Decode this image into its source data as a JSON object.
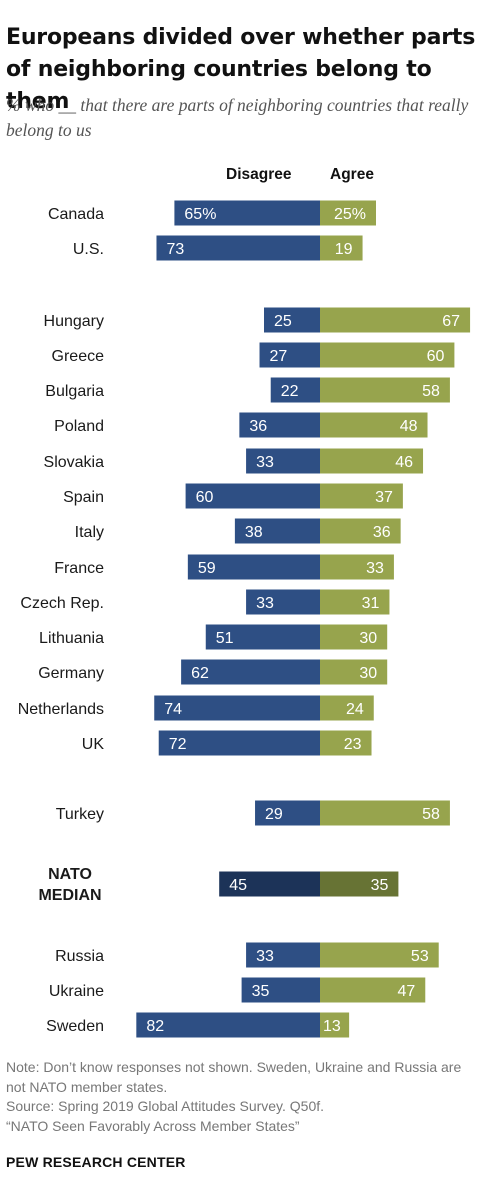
{
  "title": "Europeans divided over whether parts of neighboring countries belong to them",
  "subtitle": "% who __ that there are parts of neighboring countries that really belong to us",
  "colors": {
    "disagree": "#2e4f84",
    "agree": "#97a44d",
    "disagree_median": "#1c3358",
    "agree_median": "#677334"
  },
  "chart_data": {
    "type": "bar",
    "orientation": "horizontal-diverging",
    "series": [
      {
        "name": "Disagree",
        "values": [
          65,
          73,
          25,
          27,
          22,
          36,
          33,
          60,
          38,
          59,
          33,
          51,
          62,
          74,
          72,
          29,
          45,
          33,
          35,
          82
        ]
      },
      {
        "name": "Agree",
        "values": [
          25,
          19,
          67,
          60,
          58,
          48,
          46,
          37,
          36,
          33,
          31,
          30,
          30,
          24,
          23,
          58,
          35,
          53,
          47,
          13
        ]
      }
    ],
    "categories": [
      "Canada",
      "U.S.",
      "Hungary",
      "Greece",
      "Bulgaria",
      "Poland",
      "Slovakia",
      "Spain",
      "Italy",
      "France",
      "Czech Rep.",
      "Lithuania",
      "Germany",
      "Netherlands",
      "UK",
      "Turkey",
      "NATO MEDIAN",
      "Russia",
      "Ukraine",
      "Sweden"
    ],
    "rows": [
      {
        "label": "Canada",
        "disagree": 65,
        "agree": 25,
        "disagree_text": "65%",
        "agree_text": "25%"
      },
      {
        "label": "U.S.",
        "disagree": 73,
        "agree": 19,
        "disagree_text": "73",
        "agree_text": "19"
      },
      {
        "label": "Hungary",
        "disagree": 25,
        "agree": 67,
        "disagree_text": "25",
        "agree_text": "67"
      },
      {
        "label": "Greece",
        "disagree": 27,
        "agree": 60,
        "disagree_text": "27",
        "agree_text": "60"
      },
      {
        "label": "Bulgaria",
        "disagree": 22,
        "agree": 58,
        "disagree_text": "22",
        "agree_text": "58"
      },
      {
        "label": "Poland",
        "disagree": 36,
        "agree": 48,
        "disagree_text": "36",
        "agree_text": "48"
      },
      {
        "label": "Slovakia",
        "disagree": 33,
        "agree": 46,
        "disagree_text": "33",
        "agree_text": "46"
      },
      {
        "label": "Spain",
        "disagree": 60,
        "agree": 37,
        "disagree_text": "60",
        "agree_text": "37"
      },
      {
        "label": "Italy",
        "disagree": 38,
        "agree": 36,
        "disagree_text": "38",
        "agree_text": "36"
      },
      {
        "label": "France",
        "disagree": 59,
        "agree": 33,
        "disagree_text": "59",
        "agree_text": "33"
      },
      {
        "label": "Czech Rep.",
        "disagree": 33,
        "agree": 31,
        "disagree_text": "33",
        "agree_text": "31"
      },
      {
        "label": "Lithuania",
        "disagree": 51,
        "agree": 30,
        "disagree_text": "51",
        "agree_text": "30"
      },
      {
        "label": "Germany",
        "disagree": 62,
        "agree": 30,
        "disagree_text": "62",
        "agree_text": "30"
      },
      {
        "label": "Netherlands",
        "disagree": 74,
        "agree": 24,
        "disagree_text": "74",
        "agree_text": "24"
      },
      {
        "label": "UK",
        "disagree": 72,
        "agree": 23,
        "disagree_text": "72",
        "agree_text": "23"
      },
      {
        "label": "Turkey",
        "disagree": 29,
        "agree": 58,
        "disagree_text": "29",
        "agree_text": "58"
      },
      {
        "label": "NATO MEDIAN",
        "label_lines": [
          "NATO",
          "MEDIAN"
        ],
        "median": true,
        "disagree": 45,
        "agree": 35,
        "disagree_text": "45",
        "agree_text": "35"
      },
      {
        "label": "Russia",
        "disagree": 33,
        "agree": 53,
        "disagree_text": "33",
        "agree_text": "53"
      },
      {
        "label": "Ukraine",
        "disagree": 35,
        "agree": 47,
        "disagree_text": "35",
        "agree_text": "47"
      },
      {
        "label": "Sweden",
        "disagree": 82,
        "agree": 13,
        "disagree_text": "82",
        "agree_text": "13"
      }
    ],
    "legend": {
      "disagree": "Disagree",
      "agree": "Agree"
    },
    "legend_position": "top",
    "grid": false
  },
  "notes": {
    "line1": "Note: Don’t know responses not shown. Sweden, Ukraine and Russia are not NATO member states.",
    "line2": "Source: Spring 2019 Global Attitudes Survey. Q50f.",
    "line3": "“NATO Seen Favorably Across Member States”"
  },
  "footer": "PEW RESEARCH CENTER"
}
